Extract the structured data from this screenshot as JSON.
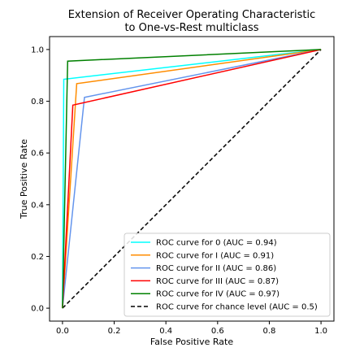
{
  "chart_data": {
    "type": "line",
    "title": [
      "Extension of Receiver Operating Characteristic",
      "to One-vs-Rest multiclass"
    ],
    "xlabel": "False Positive Rate",
    "ylabel": "True Positive Rate",
    "xlim": [
      -0.05,
      1.05
    ],
    "ylim": [
      -0.05,
      1.05
    ],
    "xticks": [
      0.0,
      0.2,
      0.4,
      0.6,
      0.8,
      1.0
    ],
    "yticks": [
      0.0,
      0.2,
      0.4,
      0.6,
      0.8,
      1.0
    ],
    "xtick_labels": [
      "0.0",
      "0.2",
      "0.4",
      "0.6",
      "0.8",
      "1.0"
    ],
    "ytick_labels": [
      "0.0",
      "0.2",
      "0.4",
      "0.6",
      "0.8",
      "1.0"
    ],
    "grid": false,
    "legend_position": "lower-right",
    "series": [
      {
        "name": "ROC curve for 0 (AUC = 0.94)",
        "color": "#00ffff",
        "dashed": false,
        "x": [
          0.0,
          0.005,
          1.0
        ],
        "y": [
          0.0,
          0.885,
          1.0
        ]
      },
      {
        "name": "ROC curve for I (AUC = 0.91)",
        "color": "#ff8c00",
        "dashed": false,
        "x": [
          0.0,
          0.055,
          1.0
        ],
        "y": [
          0.0,
          0.868,
          1.0
        ]
      },
      {
        "name": "ROC curve for II (AUC = 0.86)",
        "color": "#6495ed",
        "dashed": false,
        "x": [
          0.0,
          0.085,
          1.0
        ],
        "y": [
          0.0,
          0.815,
          1.0
        ]
      },
      {
        "name": "ROC curve for III (AUC = 0.87)",
        "color": "#ff0000",
        "dashed": false,
        "x": [
          0.0,
          0.04,
          1.0
        ],
        "y": [
          0.0,
          0.785,
          1.0
        ]
      },
      {
        "name": "ROC curve for IV (AUC = 0.97)",
        "color": "#008000",
        "dashed": false,
        "x": [
          0.0,
          0.02,
          1.0
        ],
        "y": [
          0.0,
          0.955,
          1.0
        ]
      },
      {
        "name": "ROC curve for chance level (AUC = 0.5)",
        "color": "#000000",
        "dashed": true,
        "x": [
          0.0,
          1.0
        ],
        "y": [
          0.0,
          1.0
        ]
      }
    ]
  }
}
